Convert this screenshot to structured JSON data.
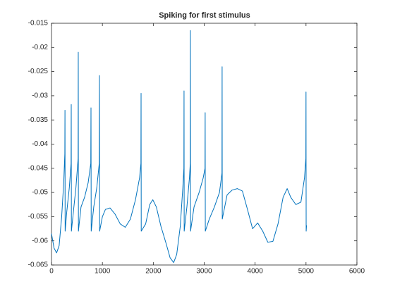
{
  "chart_data": {
    "type": "line",
    "title": "Spiking for first stimulus",
    "x": [
      0,
      50,
      100,
      150,
      200,
      240,
      262,
      265,
      268,
      300,
      350,
      385,
      388,
      391,
      430,
      480,
      523,
      526,
      529,
      580,
      650,
      720,
      772,
      776,
      780,
      830,
      890,
      938,
      942,
      946,
      1000,
      1060,
      1150,
      1250,
      1350,
      1450,
      1550,
      1650,
      1730,
      1757,
      1760,
      1763,
      1850,
      1930,
      1990,
      2060,
      2150,
      2250,
      2330,
      2400,
      2460,
      2530,
      2580,
      2601,
      2604,
      2607,
      2660,
      2710,
      2726,
      2729,
      2732,
      2800,
      2900,
      2980,
      3016,
      3019,
      3022,
      3100,
      3200,
      3300,
      3349,
      3352,
      3355,
      3450,
      3550,
      3650,
      3750,
      3850,
      3950,
      4050,
      4150,
      4250,
      4350,
      4450,
      4550,
      4630,
      4700,
      4800,
      4900,
      4970,
      4997,
      5000,
      5003,
      5010
    ],
    "values": [
      -0.0585,
      -0.0615,
      -0.0625,
      -0.061,
      -0.055,
      -0.048,
      -0.042,
      -0.033,
      -0.058,
      -0.054,
      -0.049,
      -0.044,
      -0.0318,
      -0.058,
      -0.054,
      -0.049,
      -0.043,
      -0.021,
      -0.058,
      -0.053,
      -0.051,
      -0.048,
      -0.044,
      -0.0325,
      -0.058,
      -0.053,
      -0.049,
      -0.044,
      -0.0258,
      -0.058,
      -0.055,
      -0.0535,
      -0.0532,
      -0.0545,
      -0.0565,
      -0.0572,
      -0.0555,
      -0.0515,
      -0.047,
      -0.044,
      -0.0295,
      -0.058,
      -0.0565,
      -0.0525,
      -0.0515,
      -0.053,
      -0.057,
      -0.0605,
      -0.0635,
      -0.0645,
      -0.0628,
      -0.057,
      -0.049,
      -0.045,
      -0.029,
      -0.058,
      -0.053,
      -0.047,
      -0.044,
      -0.0165,
      -0.058,
      -0.053,
      -0.05,
      -0.047,
      -0.045,
      -0.0335,
      -0.058,
      -0.0555,
      -0.053,
      -0.05,
      -0.046,
      -0.024,
      -0.0555,
      -0.0505,
      -0.0495,
      -0.0492,
      -0.0497,
      -0.0535,
      -0.0575,
      -0.0563,
      -0.058,
      -0.0603,
      -0.0601,
      -0.0565,
      -0.051,
      -0.0492,
      -0.051,
      -0.0525,
      -0.052,
      -0.047,
      -0.043,
      -0.0292,
      -0.058,
      -0.0568
    ],
    "color": "#0072bd",
    "xlim": [
      0,
      6000
    ],
    "xticks": [
      0,
      1000,
      2000,
      3000,
      4000,
      5000,
      6000
    ],
    "ylim": [
      -0.065,
      -0.015
    ],
    "yticks": [
      -0.065,
      -0.06,
      -0.055,
      -0.05,
      -0.045,
      -0.04,
      -0.035,
      -0.03,
      -0.025,
      -0.02,
      -0.015
    ],
    "grid": false
  }
}
